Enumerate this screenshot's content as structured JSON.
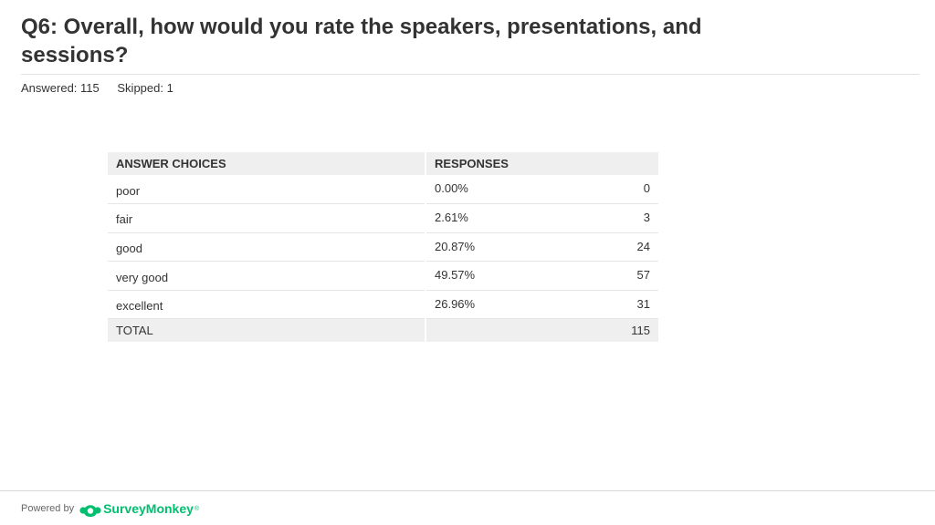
{
  "question": {
    "title": "Q6: Overall, how would you rate the speakers, presentations, and sessions?",
    "answered": "Answered: 115",
    "skipped": "Skipped: 1"
  },
  "table": {
    "headers": [
      "ANSWER CHOICES",
      "RESPONSES"
    ],
    "rows": [
      {
        "choice": "poor",
        "percent": "0.00%",
        "count": "0"
      },
      {
        "choice": "fair",
        "percent": "2.61%",
        "count": "3"
      },
      {
        "choice": "good",
        "percent": "20.87%",
        "count": "24"
      },
      {
        "choice": "very good",
        "percent": "49.57%",
        "count": "57"
      },
      {
        "choice": "excellent",
        "percent": "26.96%",
        "count": "31"
      }
    ],
    "total_label": "TOTAL",
    "total_count": "115"
  },
  "footer": {
    "powered_by": "Powered by",
    "brand": "SurveyMonkey",
    "trademark": "®",
    "brand_color": "#00bf6f"
  }
}
